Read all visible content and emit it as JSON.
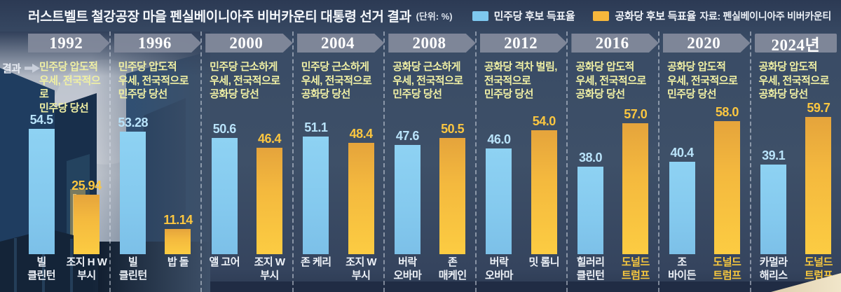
{
  "header": {
    "title": "러스트벨트 철강공장 마을 펜실베이니아주 비버카운티 대통령 선거 결과",
    "unit": "(단위: %)",
    "legend": [
      {
        "label": "민주당 후보 득표율",
        "color": "#7ec8ef"
      },
      {
        "label": "공화당 후보 득표율",
        "color": "#f6b73c"
      }
    ],
    "source": "자료: 펜실베이니아주 비버카운티"
  },
  "result_prefix": {
    "label": "결과"
  },
  "chart_data": {
    "type": "bar",
    "title": "러스트벨트 철강공장 마을 펜실베이니아주 비버카운티 대통령 선거 결과",
    "unit": "%",
    "ylim": [
      0,
      61
    ],
    "grid": false,
    "legend_position": "top",
    "categories": [
      "1992",
      "1996",
      "2000",
      "2004",
      "2008",
      "2012",
      "2016",
      "2020",
      "2024년"
    ],
    "series": [
      {
        "name": "민주당 후보 득표율",
        "color": "#7ec8ef",
        "values": [
          54.5,
          53.28,
          50.6,
          51.1,
          47.6,
          46.0,
          38.0,
          40.4,
          39.1
        ]
      },
      {
        "name": "공화당 후보 득표율",
        "color": "#f6b73c",
        "values": [
          25.94,
          11.14,
          46.4,
          48.4,
          50.5,
          54.0,
          57.0,
          58.0,
          59.7
        ]
      }
    ],
    "columns": [
      {
        "year": "1992",
        "result": "민주당 압도적\n우세, 전국적으로\n민주당 당선",
        "dem": {
          "name": "빌\n클린턴",
          "value": 54.5,
          "value_label": "54.5"
        },
        "rep": {
          "name": "조지 H W\n부시",
          "value": 25.94,
          "value_label": "25.94",
          "highlight": false
        }
      },
      {
        "year": "1996",
        "result": "민주당 압도적\n우세, 전국적으로\n민주당 당선",
        "dem": {
          "name": "빌\n클린턴",
          "value": 53.28,
          "value_label": "53.28"
        },
        "rep": {
          "name": "밥 돌",
          "value": 11.14,
          "value_label": "11.14",
          "highlight": false
        }
      },
      {
        "year": "2000",
        "result": "민주당 근소하게\n우세, 전국적으로\n공화당 당선",
        "dem": {
          "name": "앨 고어",
          "value": 50.6,
          "value_label": "50.6"
        },
        "rep": {
          "name": "조지 W\n부시",
          "value": 46.4,
          "value_label": "46.4",
          "highlight": false
        }
      },
      {
        "year": "2004",
        "result": "민주당 근소하게\n우세, 전국적으로\n공화당 당선",
        "dem": {
          "name": "존 케리",
          "value": 51.1,
          "value_label": "51.1"
        },
        "rep": {
          "name": "조지 W\n부시",
          "value": 48.4,
          "value_label": "48.4",
          "highlight": false
        }
      },
      {
        "year": "2008",
        "result": "공화당 근소하게\n우세, 전국적으로\n민주당 당선",
        "dem": {
          "name": "버락\n오바마",
          "value": 47.6,
          "value_label": "47.6"
        },
        "rep": {
          "name": "존\n매케인",
          "value": 50.5,
          "value_label": "50.5",
          "highlight": false
        }
      },
      {
        "year": "2012",
        "result": "공화당 격차 벌림,\n전국적으로\n민주당 당선",
        "dem": {
          "name": "버락\n오바마",
          "value": 46.0,
          "value_label": "46.0"
        },
        "rep": {
          "name": "밋 롬니",
          "value": 54.0,
          "value_label": "54.0",
          "highlight": false
        }
      },
      {
        "year": "2016",
        "result": "공화당 압도적\n우세, 전국적으로\n공화당 당선",
        "dem": {
          "name": "힐러리\n클린턴",
          "value": 38.0,
          "value_label": "38.0"
        },
        "rep": {
          "name": "도널드\n트럼프",
          "value": 57.0,
          "value_label": "57.0",
          "highlight": true
        }
      },
      {
        "year": "2020",
        "result": "공화당 압도적\n우세, 전국적으로\n민주당 당선",
        "dem": {
          "name": "조\n바이든",
          "value": 40.4,
          "value_label": "40.4"
        },
        "rep": {
          "name": "도널드\n트럼프",
          "value": 58.0,
          "value_label": "58.0",
          "highlight": true
        }
      },
      {
        "year": "2024년",
        "result": "공화당 압도적\n우세, 전국적으로\n공화당 당선",
        "dem": {
          "name": "카멀라\n해리스",
          "value": 39.1,
          "value_label": "39.1"
        },
        "rep": {
          "name": "도널드\n트럼프",
          "value": 59.7,
          "value_label": "59.7",
          "highlight": true
        }
      }
    ]
  }
}
